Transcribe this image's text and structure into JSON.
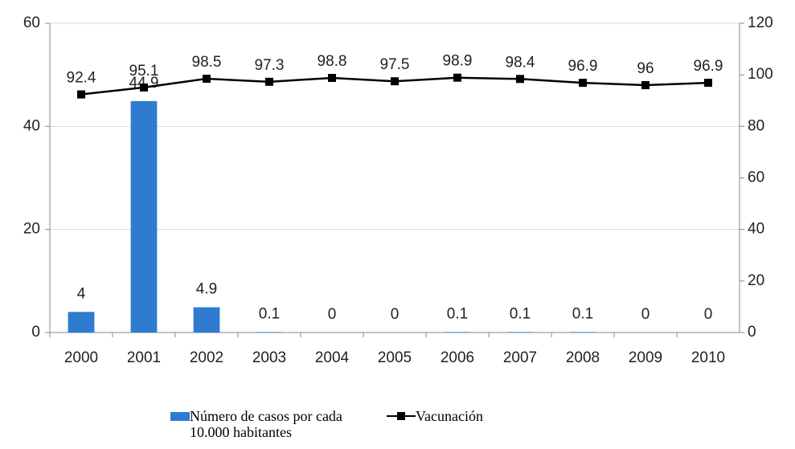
{
  "chart_data": {
    "type": "bar-line",
    "categories": [
      "2000",
      "2001",
      "2002",
      "2003",
      "2004",
      "2005",
      "2006",
      "2007",
      "2008",
      "2009",
      "2010"
    ],
    "series": [
      {
        "name": "Número de casos por cada 10.000 habitantes",
        "type": "bar",
        "color": "#2f7bd0",
        "axis": "y",
        "values": [
          4,
          44.9,
          4.9,
          0.1,
          0,
          0,
          0.1,
          0.1,
          0.1,
          0,
          0
        ]
      },
      {
        "name": "Vacunación",
        "type": "line",
        "color": "#000000",
        "axis": "y2",
        "values": [
          92.4,
          95.1,
          98.5,
          97.3,
          98.8,
          97.5,
          98.9,
          98.4,
          96.9,
          96,
          96.9
        ]
      }
    ],
    "ylim": [
      0,
      60
    ],
    "yticks": [
      0,
      20,
      40,
      60
    ],
    "y2lim": [
      0,
      120
    ],
    "y2ticks": [
      0,
      20,
      40,
      60,
      80,
      100,
      120
    ],
    "grid": true,
    "legend": "bottom"
  }
}
